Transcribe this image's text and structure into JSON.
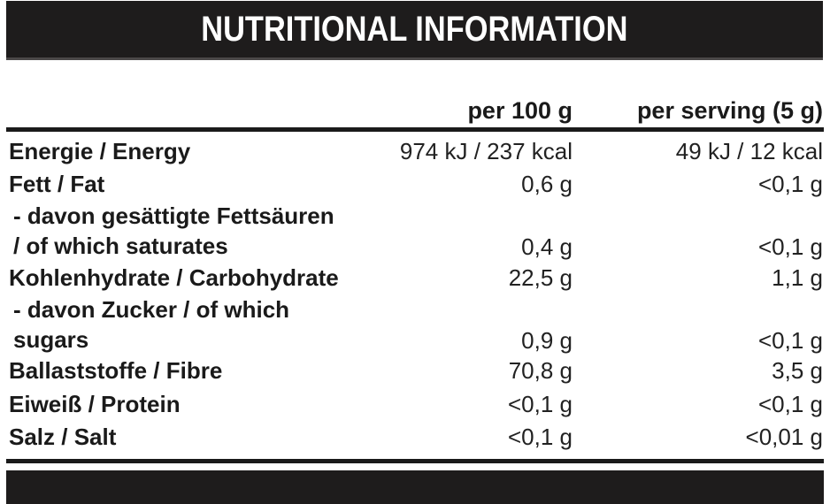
{
  "title": "NUTRITIONAL INFORMATION",
  "colors": {
    "bar_background": "#1e1c1c",
    "text": "#1a1a1a",
    "background": "#ffffff"
  },
  "table": {
    "columns": {
      "per_100g": "per 100 g",
      "per_serving": "per serving (5 g)"
    },
    "rows": [
      {
        "label": "Energie / Energy",
        "per_100g": "974 kJ / 237 kcal",
        "per_serving": "49 kJ / 12 kcal"
      },
      {
        "label": "Fett / Fat",
        "per_100g": "0,6 g",
        "per_serving": "<0,1 g"
      },
      {
        "label_line1": "- davon gesättigte Fettsäuren",
        "label_line2": "/ of which saturates",
        "per_100g": "0,4 g",
        "per_serving": "<0,1 g"
      },
      {
        "label": "Kohlenhydrate / Carbohydrate",
        "per_100g": "22,5 g",
        "per_serving": "1,1 g"
      },
      {
        "label_line1": "- davon Zucker / of which",
        "label_line2": "sugars",
        "per_100g": "0,9 g",
        "per_serving": "<0,1 g"
      },
      {
        "label": "Ballaststoffe / Fibre",
        "per_100g": "70,8 g",
        "per_serving": "3,5 g"
      },
      {
        "label": "Eiweiß / Protein",
        "per_100g": "<0,1 g",
        "per_serving": "<0,1 g"
      },
      {
        "label": "Salz / Salt",
        "per_100g": "<0,1 g",
        "per_serving": "<0,01 g"
      }
    ]
  }
}
